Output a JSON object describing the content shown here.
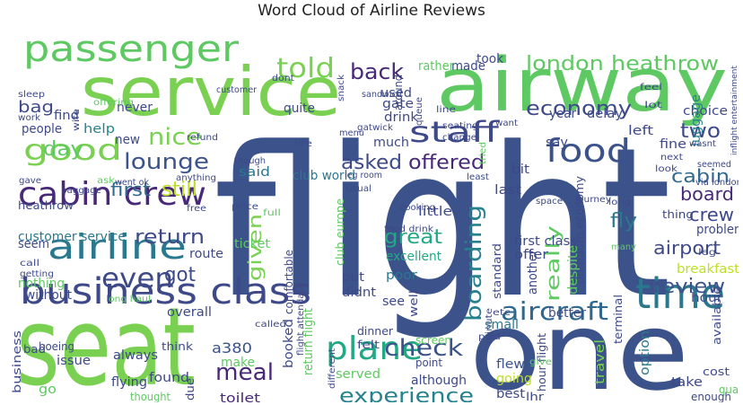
{
  "title": "Word Cloud of Airline Reviews",
  "words": [
    {
      "text": "flight",
      "color": "#3b528b"
    },
    {
      "text": "seat",
      "color": "#7ad151"
    },
    {
      "text": "airway",
      "color": "#5ec962"
    },
    {
      "text": "service",
      "color": "#7ad151"
    },
    {
      "text": "one",
      "color": "#3b528b"
    },
    {
      "text": "passenger",
      "color": "#5ec962"
    },
    {
      "text": "business class",
      "color": "#3e4989"
    },
    {
      "text": "time",
      "color": "#2a788e"
    },
    {
      "text": "plane",
      "color": "#22a884"
    },
    {
      "text": "cabin crew",
      "color": "#482878"
    },
    {
      "text": "airline",
      "color": "#2a788e"
    },
    {
      "text": "good",
      "color": "#7ad151"
    },
    {
      "text": "staff",
      "color": "#3e4989"
    },
    {
      "text": "food",
      "color": "#3b528b"
    },
    {
      "text": "told",
      "color": "#7ad151"
    },
    {
      "text": "london heathrow",
      "color": "#5ec962"
    },
    {
      "text": "aircraft",
      "color": "#31688e"
    },
    {
      "text": "even",
      "color": "#3e4989"
    },
    {
      "text": "nice",
      "color": "#7ad151"
    },
    {
      "text": "lounge",
      "color": "#3b528b"
    },
    {
      "text": "economy",
      "color": "#3e4989"
    },
    {
      "text": "back",
      "color": "#482878"
    },
    {
      "text": "check",
      "color": "#3b528b"
    },
    {
      "text": "experience",
      "color": "#26828e"
    },
    {
      "text": "return",
      "color": "#3e4989"
    },
    {
      "text": "day",
      "color": "#5ec962"
    },
    {
      "text": "first",
      "color": "#31688e"
    },
    {
      "text": "still",
      "color": "#bddf26"
    },
    {
      "text": "asked",
      "color": "#3e4989"
    },
    {
      "text": "offered",
      "color": "#482878"
    },
    {
      "text": "great",
      "color": "#22a884"
    },
    {
      "text": "got",
      "color": "#3e4989"
    },
    {
      "text": "given",
      "color": "#7ad151"
    },
    {
      "text": "boarding",
      "color": "#26828e"
    },
    {
      "text": "really",
      "color": "#5ec962"
    },
    {
      "text": "meal",
      "color": "#482878"
    },
    {
      "text": "review",
      "color": "#3b528b"
    },
    {
      "text": "airport",
      "color": "#3e4989"
    },
    {
      "text": "cabin",
      "color": "#31688e"
    },
    {
      "text": "board",
      "color": "#482878"
    },
    {
      "text": "crew",
      "color": "#3e4989"
    },
    {
      "text": "two",
      "color": "#3e4989"
    },
    {
      "text": "fly",
      "color": "#2a788e"
    },
    {
      "text": "bag",
      "color": "#3e4989"
    },
    {
      "text": "customer service",
      "color": "#2a788e"
    },
    {
      "text": "said",
      "color": "#2a788e"
    },
    {
      "text": "club world",
      "color": "#2a788e"
    },
    {
      "text": "much",
      "color": "#3e4989"
    },
    {
      "text": "help",
      "color": "#26828e"
    },
    {
      "text": "excellent",
      "color": "#22a884"
    },
    {
      "text": "poor",
      "color": "#2a788e"
    },
    {
      "text": "a380",
      "color": "#3b528b"
    },
    {
      "text": "always",
      "color": "#3e4989"
    },
    {
      "text": "found",
      "color": "#3e4989"
    },
    {
      "text": "toilet",
      "color": "#482878"
    },
    {
      "text": "make",
      "color": "#5ec962"
    },
    {
      "text": "flying",
      "color": "#3e4989"
    },
    {
      "text": "served",
      "color": "#5ec962"
    },
    {
      "text": "although",
      "color": "#3e4989"
    },
    {
      "text": "going",
      "color": "#bddf26"
    },
    {
      "text": "best",
      "color": "#3e4989"
    },
    {
      "text": "flew",
      "color": "#3b528b"
    },
    {
      "text": "take",
      "color": "#3e4989"
    },
    {
      "text": "pay",
      "color": "#3e4989"
    },
    {
      "text": "old",
      "color": "#482878"
    },
    {
      "text": "travel",
      "color": "#7ad151"
    },
    {
      "text": "option",
      "color": "#2a788e"
    },
    {
      "text": "hour",
      "color": "#3e4989"
    },
    {
      "text": "breakfast",
      "color": "#bddf26"
    },
    {
      "text": "problem",
      "color": "#3e4989"
    },
    {
      "text": "thing",
      "color": "#3e4989"
    },
    {
      "text": "choice",
      "color": "#3e4989"
    },
    {
      "text": "luggage",
      "color": "#26828e"
    },
    {
      "text": "delay",
      "color": "#3e4989"
    },
    {
      "text": "fine",
      "color": "#3e4989"
    },
    {
      "text": "year",
      "color": "#3e4989"
    },
    {
      "text": "left",
      "color": "#3e4989"
    },
    {
      "text": "say",
      "color": "#3e4989"
    },
    {
      "text": "bit",
      "color": "#3e4989"
    },
    {
      "text": "last",
      "color": "#3e4989"
    },
    {
      "text": "little",
      "color": "#3e4989"
    },
    {
      "text": "put",
      "color": "#3e4989"
    },
    {
      "text": "didnt",
      "color": "#3e4989"
    },
    {
      "text": "see",
      "color": "#3e4989"
    },
    {
      "text": "small",
      "color": "#2a788e"
    },
    {
      "text": "ticket",
      "color": "#5ec962"
    },
    {
      "text": "overall",
      "color": "#3e4989"
    },
    {
      "text": "route",
      "color": "#3e4989"
    },
    {
      "text": "seem",
      "color": "#3e4989"
    },
    {
      "text": "nothing",
      "color": "#5ec962"
    },
    {
      "text": "without",
      "color": "#3e4989"
    },
    {
      "text": "quite",
      "color": "#3e4989"
    },
    {
      "text": "people",
      "color": "#3e4989"
    },
    {
      "text": "find",
      "color": "#3e4989"
    },
    {
      "text": "never",
      "color": "#3e4989"
    },
    {
      "text": "new",
      "color": "#3e4989"
    },
    {
      "text": "drink",
      "color": "#3e4989"
    },
    {
      "text": "gate",
      "color": "#3e4989"
    },
    {
      "text": "used",
      "color": "#3e4989"
    },
    {
      "text": "made",
      "color": "#3e4989"
    },
    {
      "text": "rather",
      "color": "#5ec962"
    },
    {
      "text": "took",
      "color": "#3e4989"
    },
    {
      "text": "business",
      "color": "#3e4989"
    },
    {
      "text": "issue",
      "color": "#3e4989"
    },
    {
      "text": "go",
      "color": "#5ec962"
    },
    {
      "text": "heathrow",
      "color": "#3e4989"
    },
    {
      "text": "first class",
      "color": "#3e4989"
    },
    {
      "text": "premium economy",
      "color": "#3e4989"
    },
    {
      "text": "return flight",
      "color": "#5ec962"
    },
    {
      "text": "booked",
      "color": "#3e4989"
    },
    {
      "text": "comfortable",
      "color": "#3e4989"
    },
    {
      "text": "club europe",
      "color": "#5ec962"
    },
    {
      "text": "offer",
      "color": "#3e4989"
    },
    {
      "text": "another",
      "color": "#3e4989"
    },
    {
      "text": "despite",
      "color": "#5ec962"
    },
    {
      "text": "better",
      "color": "#3e4989"
    },
    {
      "text": "standard",
      "color": "#3e4989"
    },
    {
      "text": "available",
      "color": "#3e4989"
    },
    {
      "text": "enough",
      "color": "#3e4989"
    },
    {
      "text": "quality",
      "color": "#5ec962"
    },
    {
      "text": "cost",
      "color": "#3e4989"
    },
    {
      "text": "product",
      "color": "#3e4989"
    },
    {
      "text": "due",
      "color": "#3e4989"
    },
    {
      "text": "thought",
      "color": "#5ec962"
    },
    {
      "text": "know",
      "color": "#3e4989"
    },
    {
      "text": "boeing",
      "color": "#3e4989"
    },
    {
      "text": "bad",
      "color": "#3e4989"
    },
    {
      "text": "think",
      "color": "#3e4989"
    },
    {
      "text": "dinner",
      "color": "#3e4989"
    },
    {
      "text": "felt",
      "color": "#3e4989"
    },
    {
      "text": "well",
      "color": "#3e4989"
    },
    {
      "text": "screen",
      "color": "#5ec962"
    },
    {
      "text": "point",
      "color": "#3e4989"
    },
    {
      "text": "lhr",
      "color": "#3e4989"
    },
    {
      "text": "hour flight",
      "color": "#3e4989"
    },
    {
      "text": "terminal",
      "color": "#3e4989"
    },
    {
      "text": "minute",
      "color": "#3e4989"
    },
    {
      "text": "long haul",
      "color": "#5ec962"
    },
    {
      "text": "called",
      "color": "#3e4989"
    },
    {
      "text": "food drink",
      "color": "#3e4989"
    },
    {
      "text": "flight attendant",
      "color": "#3e4989"
    },
    {
      "text": "booking",
      "color": "#3e4989"
    },
    {
      "text": "space",
      "color": "#3e4989"
    },
    {
      "text": "journey",
      "color": "#3e4989"
    },
    {
      "text": "seating",
      "color": "#3e4989"
    },
    {
      "text": "change",
      "color": "#3e4989"
    },
    {
      "text": "sandwich",
      "color": "#3e4989"
    },
    {
      "text": "gatwick",
      "color": "#3e4989"
    },
    {
      "text": "snack",
      "color": "#3e4989"
    },
    {
      "text": "sleep",
      "color": "#3e4989"
    },
    {
      "text": "work",
      "color": "#3e4989"
    },
    {
      "text": "wife",
      "color": "#3e4989"
    },
    {
      "text": "offering",
      "color": "#5ec962"
    },
    {
      "text": "customer",
      "color": "#3e4989"
    },
    {
      "text": "dont",
      "color": "#3e4989"
    },
    {
      "text": "refund",
      "color": "#3e4989"
    },
    {
      "text": "baggage",
      "color": "#3e4989"
    },
    {
      "text": "gave",
      "color": "#3e4989"
    },
    {
      "text": "ask",
      "color": "#5ec962"
    },
    {
      "text": "went ok",
      "color": "#3e4989"
    },
    {
      "text": "free",
      "color": "#3e4989"
    },
    {
      "text": "anything",
      "color": "#3e4989"
    },
    {
      "text": "though",
      "color": "#3e4989"
    },
    {
      "text": "price",
      "color": "#3e4989"
    },
    {
      "text": "full",
      "color": "#5ec962"
    },
    {
      "text": "leg room",
      "color": "#3e4989"
    },
    {
      "text": "usual",
      "color": "#3e4989"
    },
    {
      "text": "menu",
      "color": "#3e4989"
    },
    {
      "text": "life",
      "color": "#3e4989"
    },
    {
      "text": "want",
      "color": "#3e4989"
    },
    {
      "text": "tried",
      "color": "#5ec962"
    },
    {
      "text": "least",
      "color": "#3e4989"
    },
    {
      "text": "etc",
      "color": "#3e4989"
    },
    {
      "text": "paid",
      "color": "#3e4989"
    },
    {
      "text": "give",
      "color": "#5ec962"
    },
    {
      "text": "different",
      "color": "#3e4989"
    },
    {
      "text": "couldnt checkin",
      "color": "#3e4989"
    },
    {
      "text": "seemed",
      "color": "#3e4989"
    },
    {
      "text": "via london",
      "color": "#3e4989"
    },
    {
      "text": "many",
      "color": "#5ec962"
    },
    {
      "text": "leg",
      "color": "#3e4989"
    },
    {
      "text": "look",
      "color": "#3e4989"
    },
    {
      "text": "long",
      "color": "#3e4989"
    },
    {
      "text": "next",
      "color": "#3e4989"
    },
    {
      "text": "wasnt",
      "color": "#3e4989"
    },
    {
      "text": "inflight entertainment",
      "color": "#3e4989"
    },
    {
      "text": "feel",
      "color": "#3e4989"
    },
    {
      "text": "lot",
      "color": "#3e4989"
    },
    {
      "text": "call",
      "color": "#3e4989"
    },
    {
      "text": "getting",
      "color": "#3e4989"
    },
    {
      "text": "queue",
      "color": "#3e4989"
    },
    {
      "text": "around",
      "color": "#3e4989"
    },
    {
      "text": "line",
      "color": "#3e4989"
    }
  ]
}
